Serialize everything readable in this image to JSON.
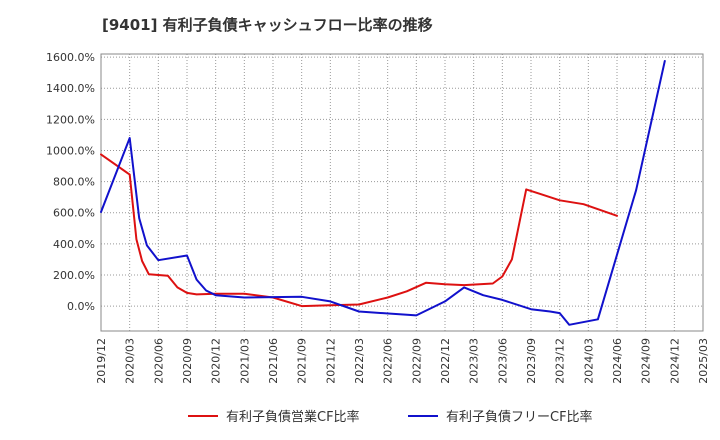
{
  "chart_data": {
    "type": "line",
    "title": "[9401]  有利子負債キャッシュフロー比率の推移",
    "xlabel": "",
    "ylabel": "",
    "ylim": [
      -160,
      1620
    ],
    "yticks": [
      0,
      200,
      400,
      600,
      800,
      1000,
      1200,
      1400,
      1600
    ],
    "ytick_labels": [
      "0.0%",
      "200.0%",
      "400.0%",
      "600.0%",
      "800.0%",
      "1000.0%",
      "1200.0%",
      "1400.0%",
      "1600.0%"
    ],
    "xtick_labels": [
      "2019/12",
      "2020/03",
      "2020/06",
      "2020/09",
      "2020/12",
      "2021/03",
      "2021/06",
      "2021/09",
      "2021/12",
      "2022/03",
      "2022/06",
      "2022/09",
      "2022/12",
      "2023/03",
      "2023/06",
      "2023/09",
      "2023/12",
      "2024/03",
      "2024/06",
      "2024/09",
      "2024/12",
      "2025/03"
    ],
    "grid": true,
    "legend_position": "bottom",
    "series": [
      {
        "name": "有利子負債営業CF比率",
        "color": "#dd1111",
        "points": [
          [
            0,
            975
          ],
          [
            3,
            845
          ],
          [
            3.7,
            430
          ],
          [
            4.3,
            290
          ],
          [
            5,
            205
          ],
          [
            6,
            200
          ],
          [
            7,
            195
          ],
          [
            8,
            120
          ],
          [
            9,
            85
          ],
          [
            10,
            75
          ],
          [
            12,
            80
          ],
          [
            15,
            80
          ],
          [
            18,
            55
          ],
          [
            21,
            0
          ],
          [
            24,
            5
          ],
          [
            27,
            10
          ],
          [
            30,
            55
          ],
          [
            32,
            95
          ],
          [
            34,
            150
          ],
          [
            36,
            140
          ],
          [
            38,
            135
          ],
          [
            41,
            145
          ],
          [
            42,
            190
          ],
          [
            43,
            300
          ],
          [
            44.5,
            750
          ],
          [
            46,
            720
          ],
          [
            48,
            680
          ],
          [
            50.5,
            655
          ],
          [
            54,
            580
          ]
        ]
      },
      {
        "name": "有利子負債フリーCF比率",
        "color": "#1111cc",
        "points": [
          [
            0,
            605
          ],
          [
            3,
            1080
          ],
          [
            4,
            565
          ],
          [
            4.8,
            390
          ],
          [
            6,
            295
          ],
          [
            9,
            325
          ],
          [
            10,
            170
          ],
          [
            11,
            100
          ],
          [
            12,
            70
          ],
          [
            15,
            55
          ],
          [
            21,
            60
          ],
          [
            24,
            30
          ],
          [
            27,
            -35
          ],
          [
            33,
            -60
          ],
          [
            36,
            30
          ],
          [
            38,
            120
          ],
          [
            40,
            70
          ],
          [
            42,
            40
          ],
          [
            45,
            -20
          ],
          [
            47,
            -35
          ],
          [
            48,
            -45
          ],
          [
            49,
            -120
          ],
          [
            52,
            -85
          ],
          [
            56,
            745
          ],
          [
            59,
            1575
          ]
        ]
      }
    ]
  }
}
